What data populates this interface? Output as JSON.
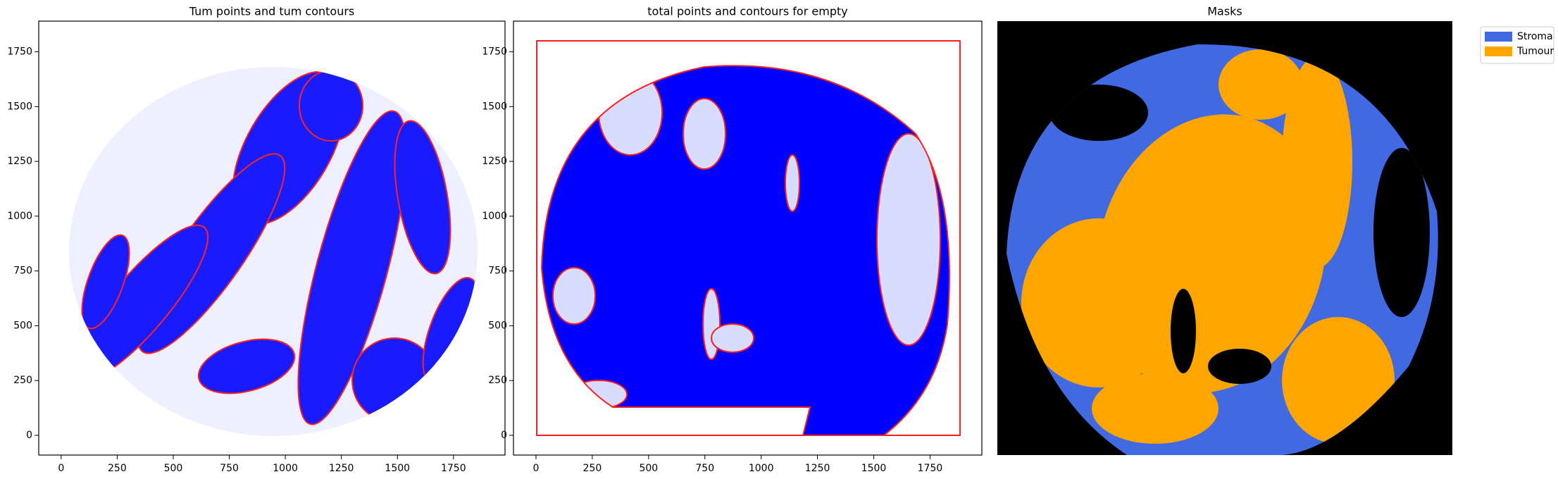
{
  "chart_data": [
    {
      "type": "scatter",
      "title": "Tum points and tum contours",
      "color": "#0000ff",
      "contour_color": "#ff0000",
      "xlim": [
        -100,
        1980
      ],
      "ylim": [
        -90,
        1890
      ],
      "xticks": [
        0,
        250,
        500,
        750,
        1000,
        1250,
        1500,
        1750
      ],
      "yticks": [
        0,
        250,
        500,
        750,
        1000,
        1250,
        1500,
        1750
      ]
    },
    {
      "type": "scatter",
      "title": "total points and contours for empty",
      "color": "#0000ff",
      "contour_color": "#ff0000",
      "xlim": [
        -100,
        1980
      ],
      "ylim": [
        -90,
        1890
      ],
      "xticks": [
        0,
        250,
        500,
        750,
        1000,
        1250,
        1500,
        1750
      ],
      "yticks": [
        0,
        250,
        500,
        750,
        1000,
        1250,
        1500,
        1750
      ]
    },
    {
      "type": "image",
      "title": "Masks",
      "legend": [
        {
          "name": "Stroma",
          "color": "#4169e1"
        },
        {
          "name": "Tumour",
          "color": "#ffa500"
        }
      ]
    }
  ]
}
